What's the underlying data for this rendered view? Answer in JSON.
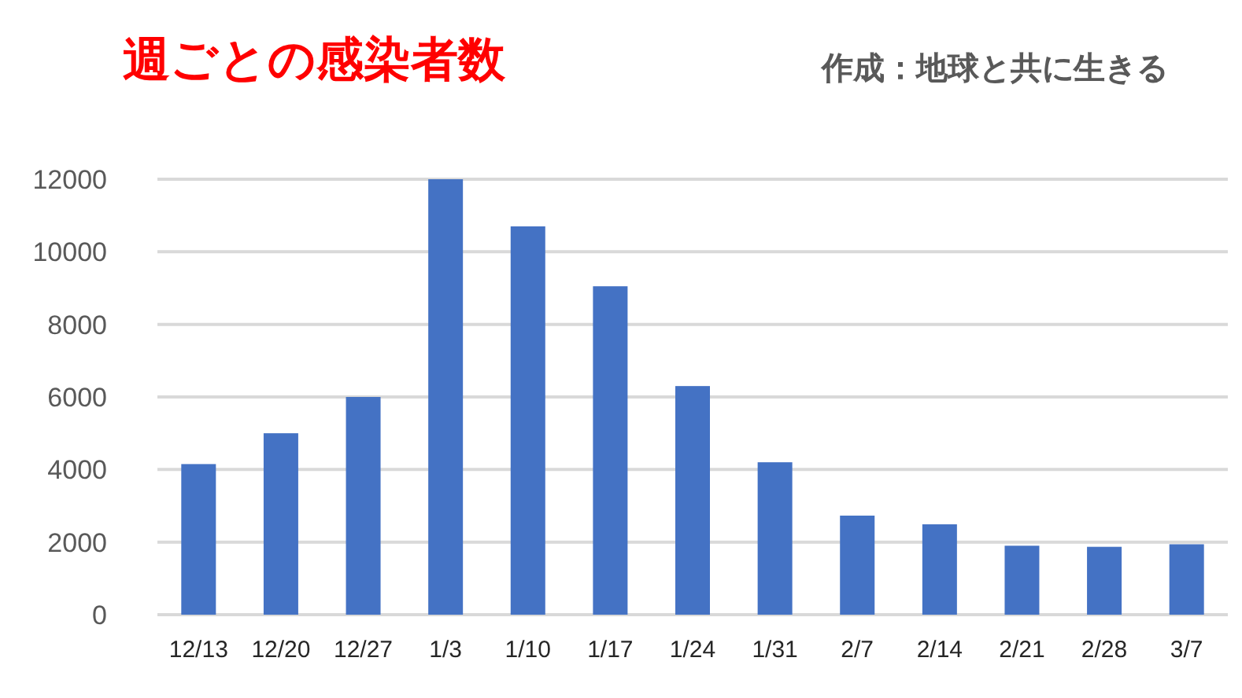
{
  "chart_data": {
    "type": "bar",
    "title": "週ごとの感染者数",
    "annotations": [
      "作成：地球と共に生きる"
    ],
    "categories": [
      "12/13",
      "12/20",
      "12/27",
      "1/3",
      "1/10",
      "1/17",
      "1/24",
      "1/31",
      "2/7",
      "2/14",
      "2/21",
      "2/28",
      "3/7"
    ],
    "values": [
      4150,
      5000,
      6000,
      12000,
      10700,
      9050,
      6300,
      4200,
      2730,
      2490,
      1900,
      1870,
      1940
    ],
    "color": "#4472c4",
    "ylim": [
      0,
      12000
    ],
    "yticks": [
      0,
      2000,
      4000,
      6000,
      8000,
      10000,
      12000
    ],
    "grid": "y"
  }
}
